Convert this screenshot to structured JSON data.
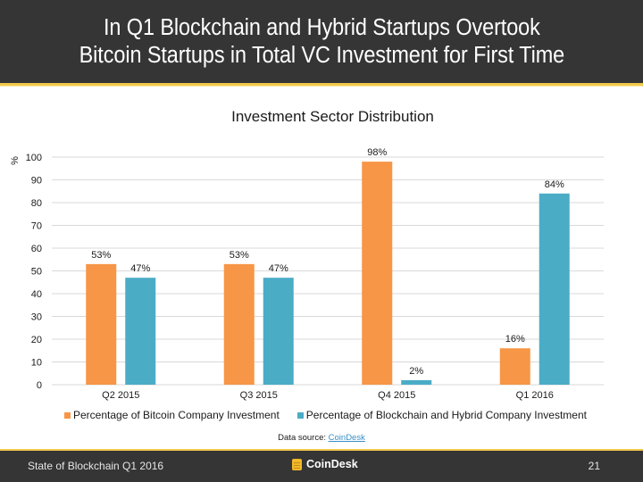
{
  "slide": {
    "title_line1": "In Q1 Blockchain and Hybrid Startups Overtook",
    "title_line2": "Bitcoin Startups in Total VC Investment for First Time"
  },
  "chart_data": {
    "type": "bar",
    "title": "Investment Sector Distribution",
    "xlabel": "",
    "ylabel": "%",
    "ylim": [
      0,
      100
    ],
    "yticks": [
      0,
      10,
      20,
      30,
      40,
      50,
      60,
      70,
      80,
      90,
      100
    ],
    "grid": true,
    "categories": [
      "Q2 2015",
      "Q3 2015",
      "Q4 2015",
      "Q1 2016"
    ],
    "series": [
      {
        "name": "Percentage of Bitcoin Company Investment",
        "color": "#f79646",
        "values": [
          53,
          53,
          98,
          16
        ],
        "labels": [
          "53%",
          "53%",
          "98%",
          "16%"
        ]
      },
      {
        "name": "Percentage of Blockchain and Hybrid Company Investment",
        "color": "#4bacc6",
        "values": [
          47,
          47,
          2,
          84
        ],
        "labels": [
          "47%",
          "47%",
          "2%",
          "84%"
        ]
      }
    ],
    "legend_position": "bottom"
  },
  "source": {
    "prefix": "Data source: ",
    "link_text": "CoinDesk"
  },
  "footer": {
    "left_text": "State of Blockchain Q1 2016",
    "logo_text": "CoinDesk",
    "page_number": "21"
  }
}
